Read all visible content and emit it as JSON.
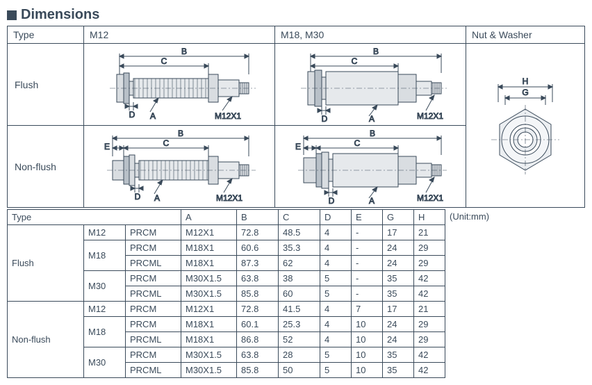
{
  "heading": "Dimensions",
  "top": {
    "typeHdr": "Type",
    "m12Hdr": "M12",
    "m18Hdr": "M18, M30",
    "nutHdr": "Nut & Washer",
    "flushLabel": "Flush",
    "nonFlushLabel": "Non-flush"
  },
  "diagLabels": {
    "A": "A",
    "B": "B",
    "C": "C",
    "D": "D",
    "E": "E",
    "G": "G",
    "H": "H",
    "thread": "M12X1"
  },
  "unit": "(Unit:mm)",
  "dims": {
    "headers": [
      "Type",
      "",
      "",
      "A",
      "B",
      "C",
      "D",
      "E",
      "G",
      "H"
    ],
    "groups": [
      {
        "type": "Flush",
        "sizes": [
          {
            "size": "M12",
            "rows": [
              {
                "series": "PRCM",
                "A": "M12X1",
                "B": "72.8",
                "C": "48.5",
                "D": "4",
                "E": "-",
                "G": "17",
                "H": "21"
              }
            ]
          },
          {
            "size": "M18",
            "rows": [
              {
                "series": "PRCM",
                "A": "M18X1",
                "B": "60.6",
                "C": "35.3",
                "D": "4",
                "E": "-",
                "G": "24",
                "H": "29"
              },
              {
                "series": "PRCML",
                "A": "M18X1",
                "B": "87.3",
                "C": "62",
                "D": "4",
                "E": "-",
                "G": "24",
                "H": "29"
              }
            ]
          },
          {
            "size": "M30",
            "rows": [
              {
                "series": "PRCM",
                "A": "M30X1.5",
                "B": "63.8",
                "C": "38",
                "D": "5",
                "E": "-",
                "G": "35",
                "H": "42"
              },
              {
                "series": "PRCML",
                "A": "M30X1.5",
                "B": "85.8",
                "C": "60",
                "D": "5",
                "E": "-",
                "G": "35",
                "H": "42"
              }
            ]
          }
        ]
      },
      {
        "type": "Non-flush",
        "sizes": [
          {
            "size": "M12",
            "rows": [
              {
                "series": "PRCM",
                "A": "M12X1",
                "B": "72.8",
                "C": "41.5",
                "D": "4",
                "E": "7",
                "G": "17",
                "H": "21"
              }
            ]
          },
          {
            "size": "M18",
            "rows": [
              {
                "series": "PRCM",
                "A": "M18X1",
                "B": "60.1",
                "C": "25.3",
                "D": "4",
                "E": "10",
                "G": "24",
                "H": "29"
              },
              {
                "series": "PRCML",
                "A": "M18X1",
                "B": "86.8",
                "C": "52",
                "D": "4",
                "E": "10",
                "G": "24",
                "H": "29"
              }
            ]
          },
          {
            "size": "M30",
            "rows": [
              {
                "series": "PRCM",
                "A": "M30X1.5",
                "B": "63.8",
                "C": "28",
                "D": "5",
                "E": "10",
                "G": "35",
                "H": "42"
              },
              {
                "series": "PRCML",
                "A": "M30X1.5",
                "B": "85.8",
                "C": "50",
                "D": "5",
                "E": "10",
                "G": "35",
                "H": "42"
              }
            ]
          }
        ]
      }
    ]
  },
  "colors": {
    "line": "#3a4a5a",
    "lineThin": "#4a5a6a",
    "fillBody": "#d9dde1",
    "fillBodyDark": "#b8c0c8",
    "dimLine": "#3a4a5a"
  }
}
